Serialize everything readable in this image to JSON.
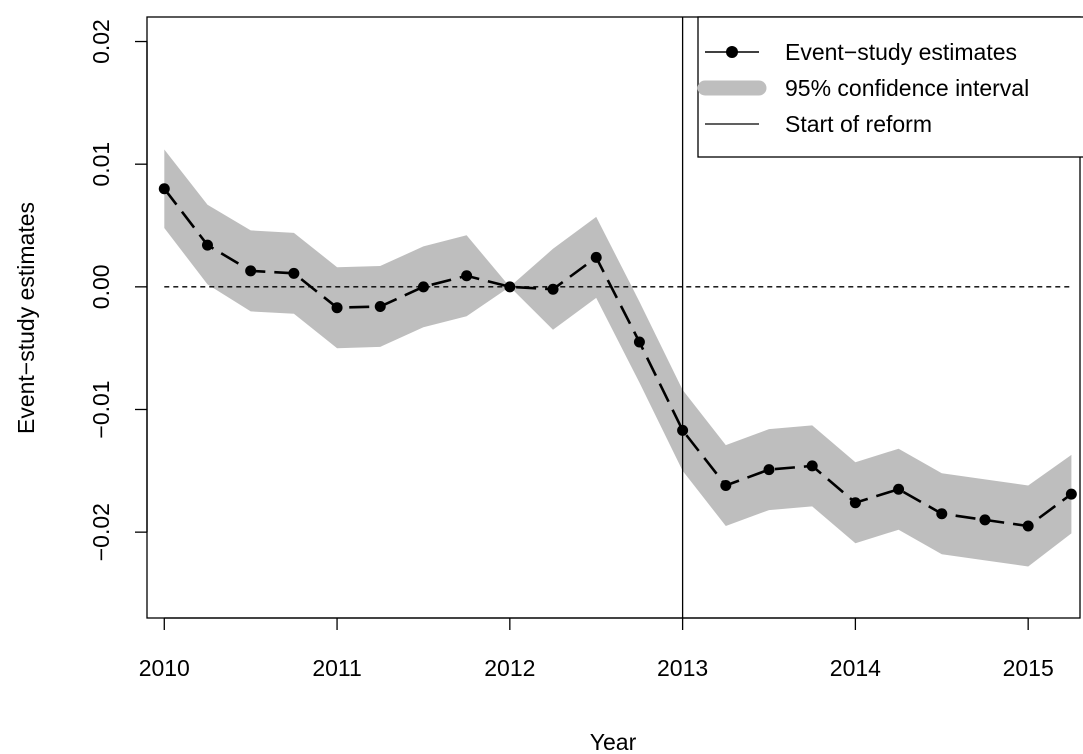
{
  "chart_data": {
    "type": "line",
    "title": "",
    "xlabel": "Year",
    "ylabel": "Event−study estimates",
    "xlim": [
      2009.9,
      2015.3
    ],
    "ylim": [
      -0.027,
      0.022
    ],
    "x_ticks": [
      2010,
      2011,
      2012,
      2013,
      2014,
      2015
    ],
    "x_tick_labels": [
      "2010",
      "2011",
      "2012",
      "2013",
      "2014",
      "2015"
    ],
    "y_ticks": [
      -0.02,
      -0.01,
      0.0,
      0.01,
      0.02
    ],
    "y_tick_labels": [
      "−0.02",
      "−0.01",
      "0.00",
      "0.01",
      "0.02"
    ],
    "x": [
      2010.0,
      2010.25,
      2010.5,
      2010.75,
      2011.0,
      2011.25,
      2011.5,
      2011.75,
      2012.0,
      2012.25,
      2012.5,
      2012.75,
      2013.0,
      2013.25,
      2013.5,
      2013.75,
      2014.0,
      2014.25,
      2014.5,
      2014.75,
      2015.0,
      2015.25
    ],
    "series": [
      {
        "name": "Event−study estimates",
        "values": [
          0.008,
          0.0034,
          0.0013,
          0.0011,
          -0.0017,
          -0.0016,
          0.0,
          0.0009,
          0.0,
          -0.0002,
          0.0024,
          -0.0045,
          -0.0117,
          -0.0162,
          -0.0149,
          -0.0146,
          -0.0176,
          -0.0165,
          -0.0185,
          -0.019,
          -0.0195,
          -0.0169
        ],
        "lower": [
          0.0048,
          0.0002,
          -0.002,
          -0.0022,
          -0.005,
          -0.0049,
          -0.0033,
          -0.0024,
          0.0,
          -0.0035,
          -0.0009,
          -0.0078,
          -0.015,
          -0.0195,
          -0.0182,
          -0.0179,
          -0.0209,
          -0.0198,
          -0.0218,
          -0.0223,
          -0.0228,
          -0.0201
        ],
        "upper": [
          0.0112,
          0.0067,
          0.0046,
          0.0044,
          0.0016,
          0.0017,
          0.0033,
          0.0042,
          0.0,
          0.0031,
          0.0057,
          -0.0012,
          -0.0084,
          -0.0129,
          -0.0116,
          -0.0113,
          -0.0143,
          -0.0132,
          -0.0152,
          -0.0157,
          -0.0162,
          -0.0137
        ]
      }
    ],
    "reference_line_y": 0,
    "vertical_line_x": 2013,
    "legend": {
      "placement": "top-right",
      "entries": [
        "Event−study estimates",
        "95% confidence interval",
        "Start of reform"
      ]
    },
    "grid": false,
    "colors": {
      "points": "#000000",
      "band": "#bebebe",
      "line": "#000000",
      "axes": "#000000"
    }
  }
}
